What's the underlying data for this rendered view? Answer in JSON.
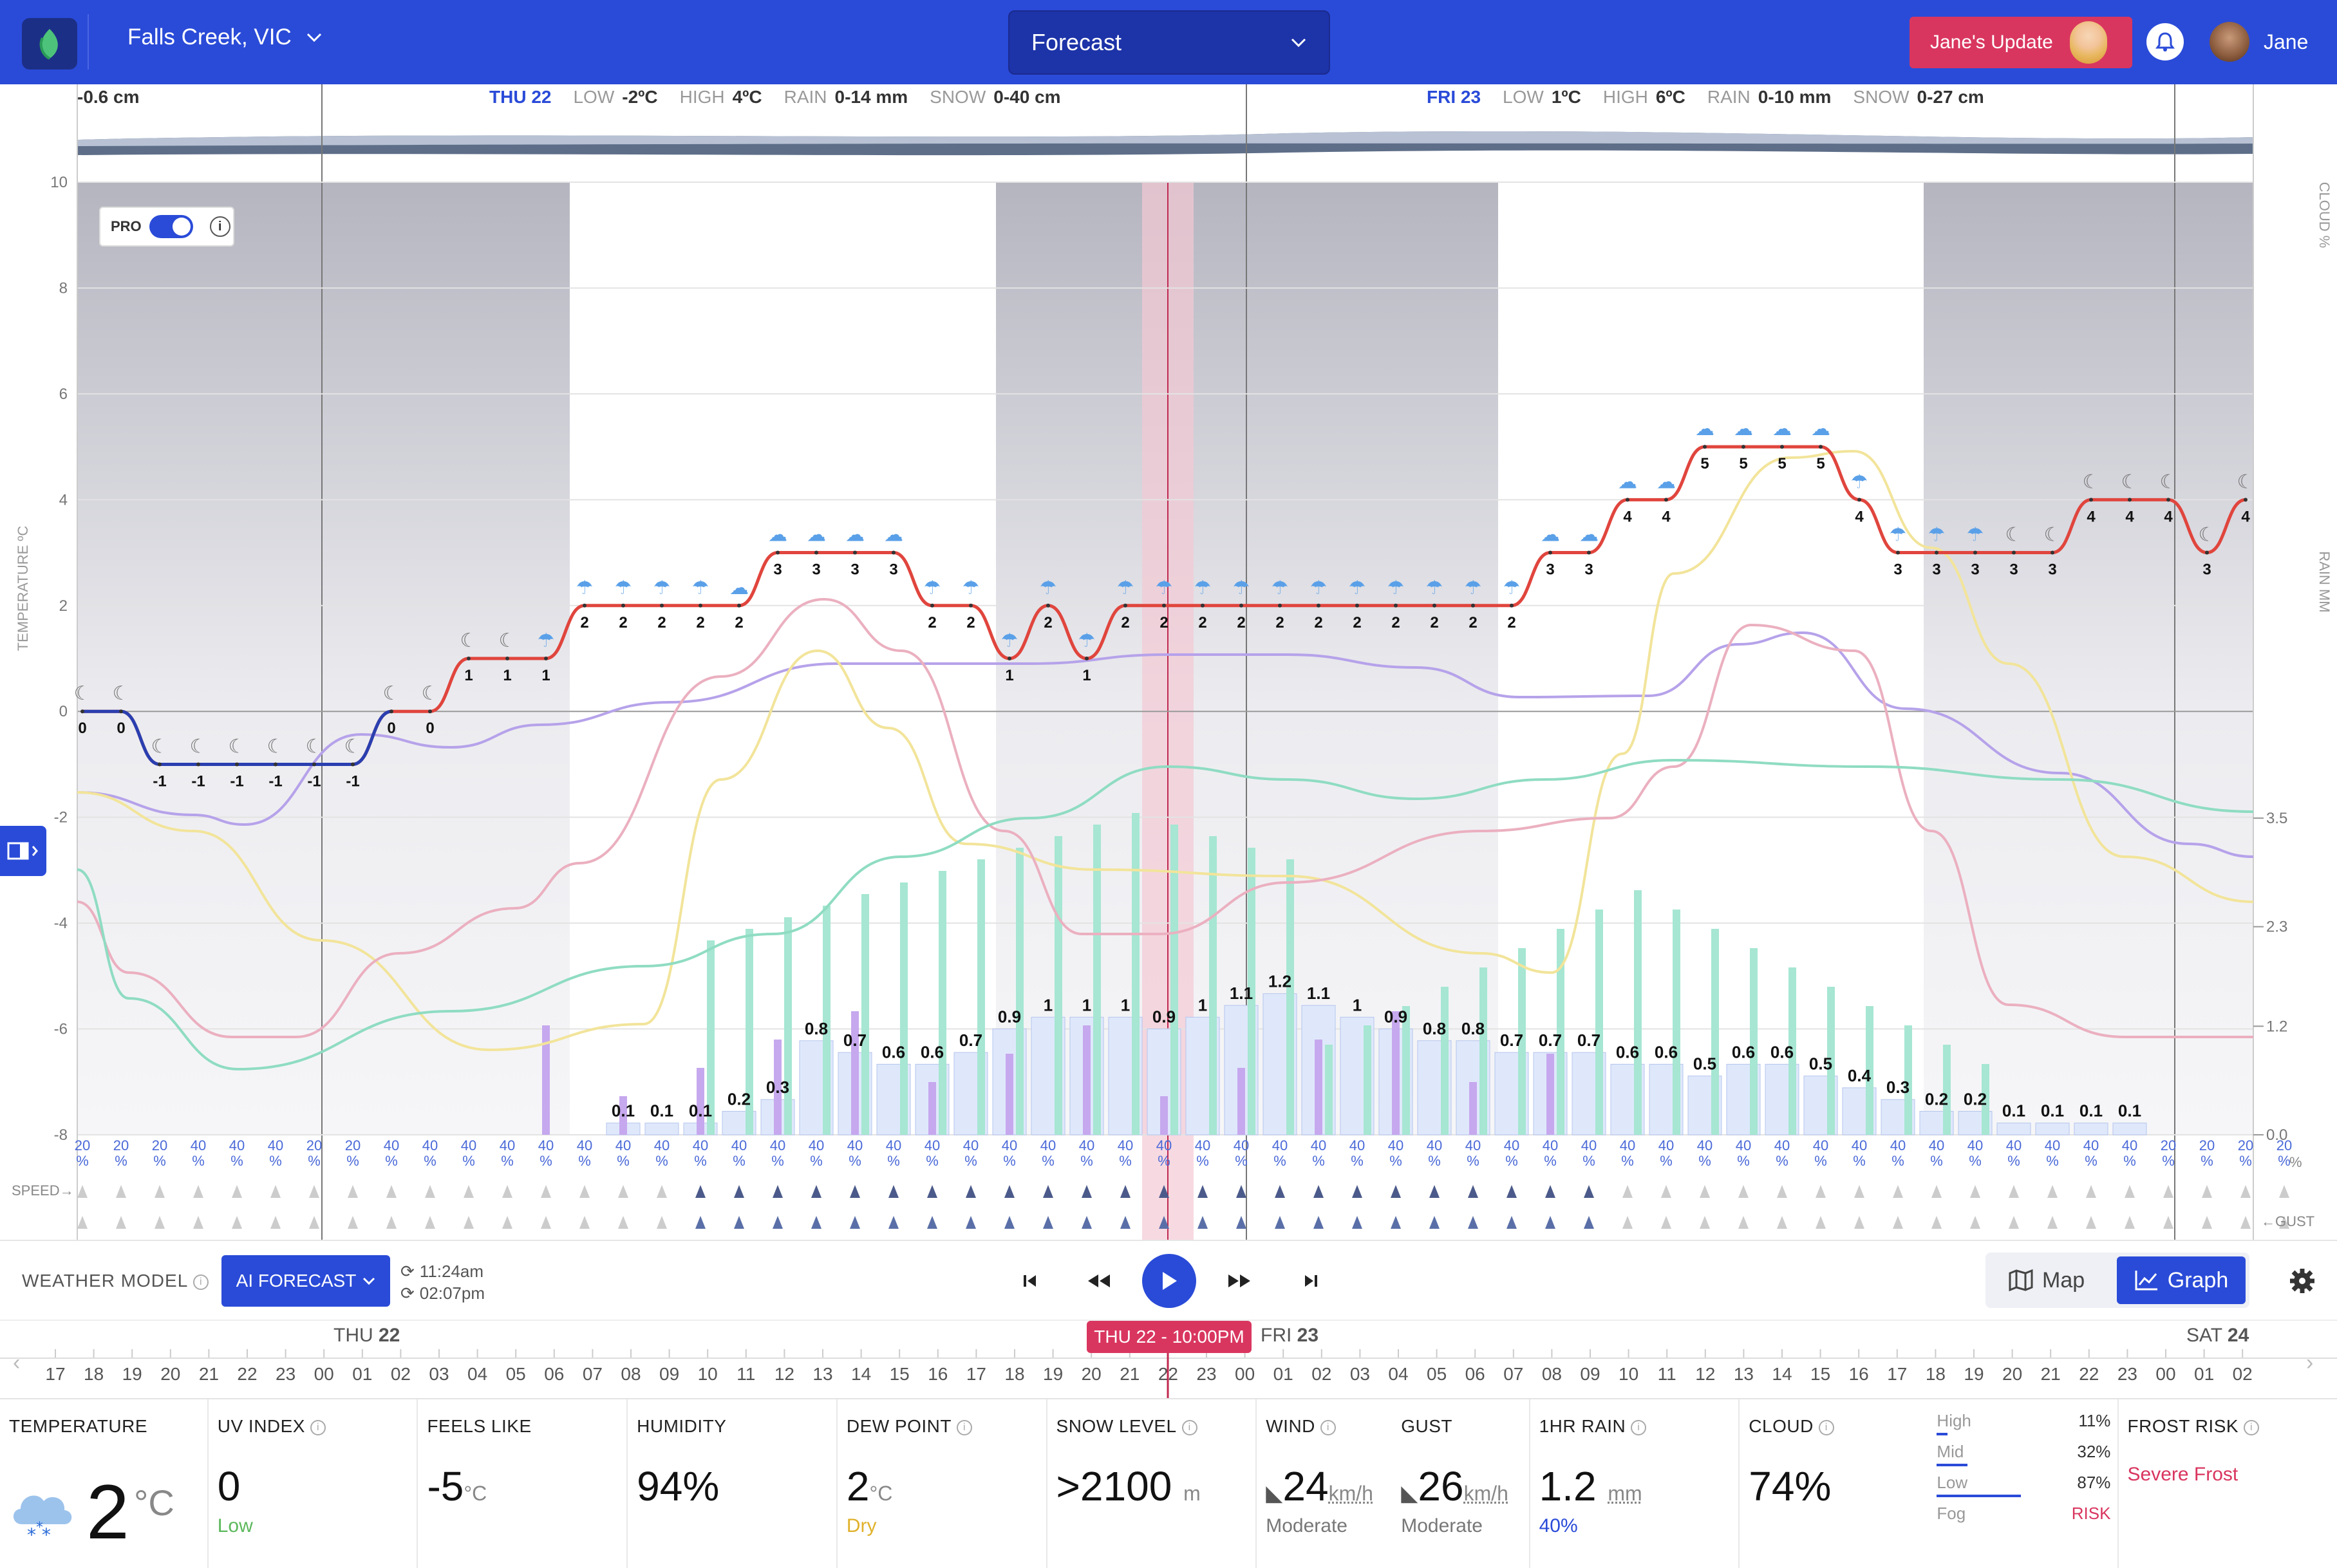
{
  "app": {
    "location": "Falls Creek, VIC",
    "view_select": "Forecast",
    "update_button": "Jane's Update",
    "user_name": "Jane"
  },
  "chart": {
    "top_left_value": "-0.6 cm",
    "days": [
      {
        "label": "THU 22",
        "low_label": "LOW",
        "low": "-2ºC",
        "high_label": "HIGH",
        "high": "4ºC",
        "rain_label": "RAIN",
        "rain": "0-14 mm",
        "snow_label": "SNOW",
        "snow": "0-40 cm"
      },
      {
        "label": "FRI 23",
        "low_label": "LOW",
        "low": "1ºC",
        "high_label": "HIGH",
        "high": "6ºC",
        "rain_label": "RAIN",
        "rain": "0-10 mm",
        "snow_label": "SNOW",
        "snow": "0-27 cm"
      }
    ],
    "left_axis_label": "TEMPERATURE ºC",
    "right_axis_cloud": "CLOUD %",
    "right_axis_rain": "RAIN MM",
    "pro_label": "PRO",
    "speed_label": "SPEED→",
    "gust_label": "←GUST",
    "pct_label": "%"
  },
  "chart_data": {
    "type": "line",
    "y_ticks": [
      "10",
      "8",
      "6",
      "4",
      "2",
      "0",
      "-2",
      "-4",
      "-6",
      "-8"
    ],
    "ylim": [
      -8,
      10
    ],
    "rain_ticks": [
      "3.5",
      "2.3",
      "1.2",
      "0.0"
    ],
    "rain_ylim": [
      0,
      3.5
    ],
    "x_start_hour": "THU 22 00",
    "temperature": [
      0,
      0,
      -1,
      -1,
      -1,
      -1,
      -1,
      -1,
      0,
      0,
      1,
      1,
      1,
      2,
      2,
      2,
      2,
      2,
      3,
      3,
      3,
      3,
      2,
      2,
      1,
      2,
      1,
      2,
      2,
      2,
      2,
      2,
      2,
      2,
      2,
      2,
      2,
      2,
      3,
      3,
      4,
      4,
      5,
      5,
      5,
      5,
      4,
      3,
      3,
      3,
      3,
      3,
      4,
      4,
      4,
      3,
      4
    ],
    "temperature_labels": [
      "0",
      "0",
      "-1",
      "-1",
      "-1",
      "-1",
      "-1",
      "-1",
      "0",
      "0",
      "1",
      "1",
      "1",
      "2",
      "2",
      "2",
      "2",
      "2",
      "3",
      "3",
      "3",
      "3",
      "2",
      "2",
      "1",
      "2",
      "1",
      "2",
      "2",
      "2",
      "2",
      "2",
      "2",
      "2",
      "2",
      "2",
      "2",
      "2",
      "3",
      "3",
      "4",
      "4",
      "5",
      "5",
      "5",
      "5",
      "4",
      "3",
      "3",
      "3",
      "3",
      "3",
      "4",
      "4",
      "4",
      "3",
      "4"
    ],
    "rain_amounts": [
      "0.1",
      "0.1",
      "0.1",
      "0.2",
      "0.3",
      "0.8",
      "0.7",
      "0.6",
      "0.6",
      "0.7",
      "0.9",
      "1",
      "1",
      "1",
      "0.9",
      "1",
      "1.1",
      "1.2",
      "1.1",
      "1",
      "0.9",
      "0.8",
      "0.8",
      "0.7",
      "0.7",
      "0.7",
      "0.6",
      "0.6",
      "0.5",
      "0.6",
      "0.6",
      "0.5",
      "0.4",
      "0.3",
      "0.2",
      "0.2",
      "0.1",
      "0.1",
      "0.1",
      "0.1"
    ],
    "rain_probability": [
      "20",
      "20",
      "20",
      "40",
      "40",
      "40",
      "20",
      "20",
      "40",
      "40",
      "40",
      "40",
      "40",
      "40",
      "40",
      "40",
      "40",
      "40",
      "40",
      "40",
      "40",
      "40",
      "40",
      "40",
      "40",
      "40",
      "40",
      "40",
      "40",
      "40",
      "40",
      "40",
      "40",
      "40",
      "40",
      "40",
      "40",
      "40",
      "40",
      "40",
      "40",
      "40",
      "40",
      "40",
      "40",
      "40",
      "40",
      "40",
      "40",
      "40",
      "40",
      "40",
      "40",
      "40",
      "20",
      "20",
      "20",
      "20"
    ],
    "series": [
      {
        "name": "Temperature",
        "color": "#e0453d"
      },
      {
        "name": "Feels like",
        "color": "#b6a2ea"
      },
      {
        "name": "Snow",
        "color": "#f2e49a"
      },
      {
        "name": "Humidity",
        "color": "#ebb0c0"
      },
      {
        "name": "Dew point",
        "color": "#8fdcc2"
      }
    ]
  },
  "controls": {
    "weather_model_label": "WEATHER MODEL",
    "model": "AI FORECAST",
    "time1": "11:24am",
    "time2": "02:07pm",
    "map_label": "Map",
    "graph_label": "Graph"
  },
  "timeline": {
    "day_labels": [
      {
        "d": "THU",
        "n": "22"
      },
      {
        "d": "FRI",
        "n": "23"
      },
      {
        "d": "SAT",
        "n": "24"
      }
    ],
    "current": "THU 22 - 10:00PM",
    "hours": [
      "17",
      "18",
      "19",
      "20",
      "21",
      "22",
      "23",
      "00",
      "01",
      "02",
      "03",
      "04",
      "05",
      "06",
      "07",
      "08",
      "09",
      "10",
      "11",
      "12",
      "13",
      "14",
      "15",
      "16",
      "17",
      "18",
      "19",
      "20",
      "21",
      "22",
      "23",
      "00",
      "01",
      "02",
      "03",
      "04",
      "05",
      "06",
      "07",
      "08",
      "09",
      "10",
      "11",
      "12",
      "13",
      "14",
      "15",
      "16",
      "17",
      "18",
      "19",
      "20",
      "21",
      "22",
      "23",
      "00",
      "01",
      "02"
    ]
  },
  "cards": {
    "temperature": {
      "title": "TEMPERATURE",
      "value": "2",
      "unit": "°C"
    },
    "uv": {
      "title": "UV INDEX",
      "value": "0",
      "sub": "Low"
    },
    "feels": {
      "title": "FEELS LIKE",
      "value": "-5",
      "unit": "°C"
    },
    "humidity": {
      "title": "HUMIDITY",
      "value": "94%"
    },
    "dew": {
      "title": "DEW POINT",
      "value": "2",
      "unit": "°C",
      "sub": "Dry"
    },
    "snow": {
      "title": "SNOW LEVEL",
      "value": ">2100",
      "unit": "m"
    },
    "wind": {
      "title": "WIND",
      "value": "24",
      "unit": "km/h",
      "sub": "Moderate"
    },
    "gust": {
      "title": "GUST",
      "value": "26",
      "unit": "km/h",
      "sub": "Moderate"
    },
    "rain": {
      "title": "1HR RAIN",
      "value": "1.2",
      "unit": "mm",
      "sub": "40%"
    },
    "cloud": {
      "title": "CLOUD",
      "value": "74%",
      "levels": [
        {
          "name": "High",
          "val": "11%",
          "frac": 0.11
        },
        {
          "name": "Mid",
          "val": "32%",
          "frac": 0.32
        },
        {
          "name": "Low",
          "val": "87%",
          "frac": 0.87
        },
        {
          "name": "Fog",
          "val": "RISK",
          "frac": 0
        }
      ]
    },
    "frost": {
      "title": "FROST RISK",
      "sub": "Severe Frost"
    }
  },
  "colors": {
    "brand": "#2a4bd8",
    "accent": "#d9365f",
    "temp": "#e0453d",
    "rain_bar": "#a6e6d2"
  }
}
